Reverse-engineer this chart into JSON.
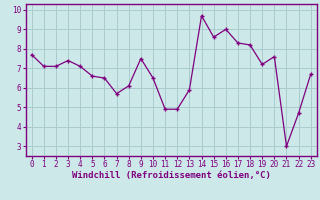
{
  "x": [
    0,
    1,
    2,
    3,
    4,
    5,
    6,
    7,
    8,
    9,
    10,
    11,
    12,
    13,
    14,
    15,
    16,
    17,
    18,
    19,
    20,
    21,
    22,
    23
  ],
  "y": [
    7.7,
    7.1,
    7.1,
    7.4,
    7.1,
    6.6,
    6.5,
    5.7,
    6.1,
    7.5,
    6.5,
    4.9,
    4.9,
    5.9,
    9.7,
    8.6,
    9.0,
    8.3,
    8.2,
    7.2,
    7.6,
    3.0,
    4.7,
    6.7
  ],
  "line_color": "#800080",
  "marker": "+",
  "marker_size": 3,
  "line_width": 0.9,
  "bg_color": "#cce8e8",
  "grid_color": "#aacccc",
  "xlabel": "Windchill (Refroidissement éolien,°C)",
  "xlabel_fontsize": 6.5,
  "xlim": [
    -0.5,
    23.5
  ],
  "ylim": [
    2.5,
    10.3
  ],
  "yticks": [
    3,
    4,
    5,
    6,
    7,
    8,
    9,
    10
  ],
  "xticks": [
    0,
    1,
    2,
    3,
    4,
    5,
    6,
    7,
    8,
    9,
    10,
    11,
    12,
    13,
    14,
    15,
    16,
    17,
    18,
    19,
    20,
    21,
    22,
    23
  ],
  "tick_fontsize": 5.5,
  "spine_color": "#800080",
  "axis_bg": "#cce8e8"
}
